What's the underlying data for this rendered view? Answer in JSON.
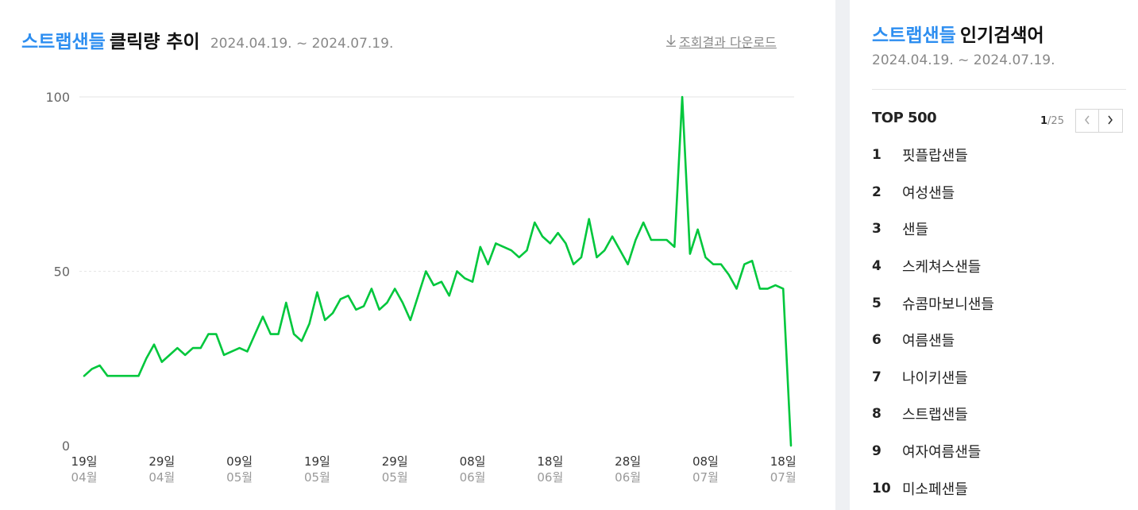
{
  "header": {
    "keyword": "스트랩샌들",
    "title": "클릭량 추이",
    "period": "2024.04.19. ~ 2024.07.19.",
    "download_label": "조회결과 다운로드",
    "download_icon": "download-arrow-icon"
  },
  "chart_data": {
    "type": "line",
    "ylim": [
      0,
      100
    ],
    "yticks": [
      "100",
      "50",
      "0"
    ],
    "tick_labels": [
      {
        "day": "19일",
        "month": "04월"
      },
      {
        "day": "29일",
        "month": "04월"
      },
      {
        "day": "09일",
        "month": "05월"
      },
      {
        "day": "19일",
        "month": "05월"
      },
      {
        "day": "29일",
        "month": "05월"
      },
      {
        "day": "08일",
        "month": "06월"
      },
      {
        "day": "18일",
        "month": "06월"
      },
      {
        "day": "28일",
        "month": "06월"
      },
      {
        "day": "08일",
        "month": "07월"
      },
      {
        "day": "18일",
        "month": "07월"
      }
    ],
    "series": [
      {
        "color": "#00c73c",
        "values": [
          20,
          22,
          23,
          20,
          20,
          20,
          20,
          20,
          25,
          29,
          24,
          26,
          28,
          26,
          28,
          28,
          32,
          32,
          26,
          27,
          28,
          27,
          32,
          37,
          32,
          32,
          41,
          32,
          30,
          35,
          44,
          36,
          38,
          42,
          43,
          39,
          40,
          45,
          39,
          41,
          45,
          41,
          36,
          43,
          50,
          46,
          47,
          43,
          50,
          48,
          47,
          57,
          52,
          58,
          57,
          56,
          54,
          56,
          64,
          60,
          58,
          61,
          58,
          52,
          54,
          65,
          54,
          56,
          60,
          56,
          52,
          59,
          64,
          59,
          59,
          59,
          57,
          100,
          55,
          62,
          54,
          52,
          52,
          49,
          45,
          52,
          53,
          45,
          45,
          46,
          45,
          0
        ]
      }
    ],
    "grid": "horizontal"
  },
  "sidebar": {
    "keyword": "스트랩샌들",
    "title": "인기검색어",
    "period": "2024.04.19. ~ 2024.07.19.",
    "top_label": "TOP 500",
    "page_current": "1",
    "page_total": "/25",
    "prev_icon": "chevron-left-icon",
    "next_icon": "chevron-right-icon",
    "items": [
      {
        "rank": "1",
        "text": "핏플랍샌들"
      },
      {
        "rank": "2",
        "text": "여성샌들"
      },
      {
        "rank": "3",
        "text": "샌들"
      },
      {
        "rank": "4",
        "text": "스케쳐스샌들"
      },
      {
        "rank": "5",
        "text": "슈콤마보니샌들"
      },
      {
        "rank": "6",
        "text": "여름샌들"
      },
      {
        "rank": "7",
        "text": "나이키샌들"
      },
      {
        "rank": "8",
        "text": "스트랩샌들"
      },
      {
        "rank": "9",
        "text": "여자여름샌들"
      },
      {
        "rank": "10",
        "text": "미소페샌들"
      }
    ]
  }
}
